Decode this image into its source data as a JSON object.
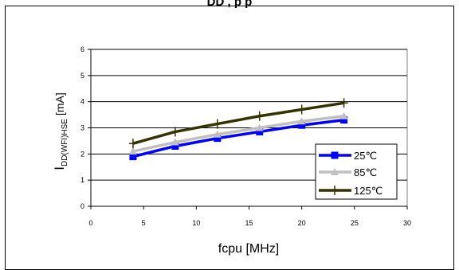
{
  "chart_data": {
    "type": "line",
    "title": "DD , p p",
    "xlabel": "fcpu [MHz]",
    "ylabel_main": "I",
    "ylabel_sub": "DD(WFI)HSE",
    "ylabel_unit": "[mA]",
    "xlim": [
      0,
      30
    ],
    "ylim": [
      0,
      6
    ],
    "xticks": [
      "0",
      "5",
      "10",
      "15",
      "20",
      "25",
      "30"
    ],
    "yticks": [
      "0",
      "1",
      "2",
      "3",
      "4",
      "5",
      "6"
    ],
    "grid": "horizontal",
    "legend_position": "right",
    "x": [
      4,
      8,
      12,
      16,
      20,
      24
    ],
    "series": [
      {
        "name": "25℃",
        "values": [
          1.9,
          2.3,
          2.6,
          2.85,
          3.1,
          3.3
        ],
        "color": "#0000ff",
        "marker": "square"
      },
      {
        "name": "85℃",
        "values": [
          2.1,
          2.45,
          2.75,
          3.0,
          3.25,
          3.45
        ],
        "color": "#c0c0c0",
        "marker": "triangle"
      },
      {
        "name": "125℃",
        "values": [
          2.4,
          2.85,
          3.15,
          3.45,
          3.7,
          3.95
        ],
        "color": "#333300",
        "marker": "cross"
      }
    ]
  }
}
